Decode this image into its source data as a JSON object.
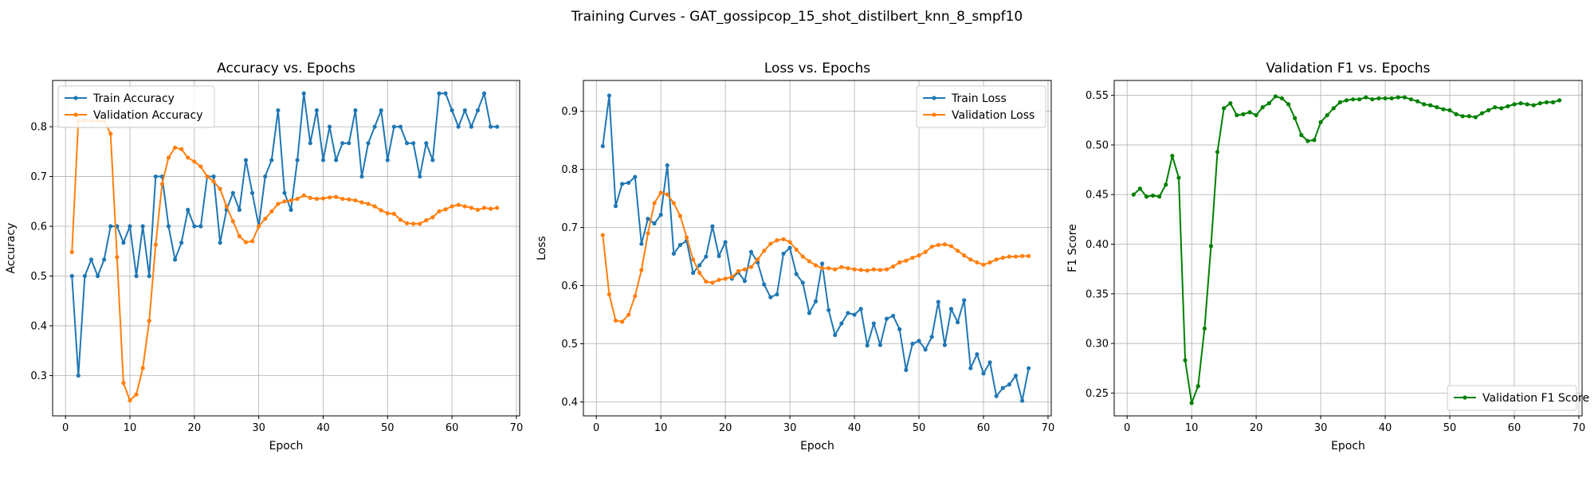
{
  "figure": {
    "suptitle": "Training Curves - GAT_gossipcop_15_shot_distilbert_knn_8_smpf10"
  },
  "chart_data": [
    {
      "type": "line",
      "title": "Accuracy vs. Epochs",
      "xlabel": "Epoch",
      "ylabel": "Accuracy",
      "xlim": [
        -2,
        70.5
      ],
      "ylim": [
        0.219,
        0.893
      ],
      "xticks": [
        0,
        10,
        20,
        30,
        40,
        50,
        60,
        70
      ],
      "yticks": [
        0.3,
        0.4,
        0.5,
        0.6,
        0.7,
        0.8
      ],
      "ytick_decimals": 1,
      "grid": true,
      "legend_position": "top-left",
      "x_start": 1,
      "series": [
        {
          "name": "Train Accuracy",
          "color": "#1f77b4",
          "values": [
            0.5,
            0.3,
            0.5,
            0.533,
            0.5,
            0.533,
            0.6,
            0.6,
            0.567,
            0.6,
            0.5,
            0.6,
            0.5,
            0.7,
            0.7,
            0.6,
            0.533,
            0.567,
            0.633,
            0.6,
            0.6,
            0.7,
            0.7,
            0.567,
            0.633,
            0.667,
            0.633,
            0.733,
            0.667,
            0.6,
            0.7,
            0.733,
            0.833,
            0.667,
            0.633,
            0.733,
            0.867,
            0.767,
            0.833,
            0.733,
            0.8,
            0.733,
            0.767,
            0.767,
            0.833,
            0.7,
            0.767,
            0.8,
            0.833,
            0.733,
            0.8,
            0.8,
            0.767,
            0.767,
            0.7,
            0.767,
            0.733,
            0.867,
            0.867,
            0.833,
            0.8,
            0.833,
            0.8,
            0.833,
            0.867,
            0.8,
            0.8
          ]
        },
        {
          "name": "Validation Accuracy",
          "color": "#ff7f0e",
          "values": [
            0.548,
            0.812,
            0.812,
            0.812,
            0.812,
            0.812,
            0.786,
            0.538,
            0.285,
            0.25,
            0.262,
            0.315,
            0.41,
            0.563,
            0.685,
            0.738,
            0.758,
            0.755,
            0.738,
            0.73,
            0.72,
            0.7,
            0.69,
            0.675,
            0.64,
            0.61,
            0.58,
            0.568,
            0.57,
            0.6,
            0.615,
            0.63,
            0.645,
            0.65,
            0.652,
            0.655,
            0.662,
            0.657,
            0.655,
            0.656,
            0.658,
            0.659,
            0.655,
            0.654,
            0.652,
            0.648,
            0.645,
            0.64,
            0.632,
            0.626,
            0.625,
            0.613,
            0.606,
            0.605,
            0.605,
            0.612,
            0.618,
            0.63,
            0.634,
            0.64,
            0.643,
            0.64,
            0.637,
            0.633,
            0.637,
            0.635,
            0.637
          ]
        }
      ]
    },
    {
      "type": "line",
      "title": "Loss vs. Epochs",
      "xlabel": "Epoch",
      "ylabel": "Loss",
      "xlim": [
        -2,
        70.5
      ],
      "ylim": [
        0.376,
        0.953
      ],
      "xticks": [
        0,
        10,
        20,
        30,
        40,
        50,
        60,
        70
      ],
      "yticks": [
        0.4,
        0.5,
        0.6,
        0.7,
        0.8,
        0.9
      ],
      "ytick_decimals": 1,
      "grid": true,
      "legend_position": "top-right",
      "x_start": 1,
      "series": [
        {
          "name": "Train Loss",
          "color": "#1f77b4",
          "values": [
            0.84,
            0.927,
            0.737,
            0.775,
            0.777,
            0.787,
            0.672,
            0.715,
            0.707,
            0.722,
            0.807,
            0.655,
            0.67,
            0.677,
            0.622,
            0.635,
            0.65,
            0.702,
            0.651,
            0.675,
            0.612,
            0.623,
            0.608,
            0.658,
            0.64,
            0.602,
            0.58,
            0.585,
            0.655,
            0.665,
            0.62,
            0.605,
            0.553,
            0.573,
            0.638,
            0.558,
            0.515,
            0.535,
            0.553,
            0.55,
            0.56,
            0.497,
            0.535,
            0.498,
            0.543,
            0.548,
            0.525,
            0.455,
            0.5,
            0.505,
            0.49,
            0.512,
            0.572,
            0.498,
            0.56,
            0.537,
            0.575,
            0.458,
            0.482,
            0.449,
            0.468,
            0.41,
            0.424,
            0.43,
            0.445,
            0.402,
            0.458
          ]
        },
        {
          "name": "Validation Loss",
          "color": "#ff7f0e",
          "values": [
            0.687,
            0.585,
            0.54,
            0.538,
            0.55,
            0.582,
            0.627,
            0.69,
            0.742,
            0.76,
            0.757,
            0.742,
            0.72,
            0.683,
            0.645,
            0.622,
            0.607,
            0.605,
            0.61,
            0.612,
            0.615,
            0.625,
            0.628,
            0.632,
            0.645,
            0.66,
            0.672,
            0.678,
            0.68,
            0.675,
            0.662,
            0.65,
            0.642,
            0.635,
            0.63,
            0.63,
            0.628,
            0.632,
            0.63,
            0.628,
            0.627,
            0.626,
            0.628,
            0.627,
            0.628,
            0.633,
            0.64,
            0.643,
            0.648,
            0.652,
            0.658,
            0.667,
            0.67,
            0.671,
            0.668,
            0.66,
            0.652,
            0.645,
            0.64,
            0.636,
            0.64,
            0.645,
            0.648,
            0.65,
            0.65,
            0.651,
            0.651
          ]
        }
      ]
    },
    {
      "type": "line",
      "title": "Validation F1 vs. Epochs",
      "xlabel": "Epoch",
      "ylabel": "F1 Score",
      "xlim": [
        -2,
        70.5
      ],
      "ylim": [
        0.227,
        0.565
      ],
      "xticks": [
        0,
        10,
        20,
        30,
        40,
        50,
        60,
        70
      ],
      "yticks": [
        0.25,
        0.3,
        0.35,
        0.4,
        0.45,
        0.5,
        0.55
      ],
      "ytick_decimals": 2,
      "grid": true,
      "legend_position": "bottom-right",
      "x_start": 1,
      "series": [
        {
          "name": "Validation F1 Score",
          "color": "#008000",
          "values": [
            0.45,
            0.456,
            0.448,
            0.449,
            0.448,
            0.46,
            0.489,
            0.467,
            0.283,
            0.24,
            0.257,
            0.315,
            0.398,
            0.493,
            0.537,
            0.542,
            0.53,
            0.531,
            0.533,
            0.53,
            0.538,
            0.542,
            0.549,
            0.547,
            0.541,
            0.527,
            0.51,
            0.504,
            0.505,
            0.523,
            0.53,
            0.537,
            0.543,
            0.545,
            0.546,
            0.546,
            0.548,
            0.546,
            0.547,
            0.547,
            0.547,
            0.548,
            0.548,
            0.546,
            0.544,
            0.541,
            0.54,
            0.538,
            0.536,
            0.535,
            0.531,
            0.529,
            0.529,
            0.528,
            0.532,
            0.535,
            0.538,
            0.537,
            0.539,
            0.541,
            0.542,
            0.541,
            0.54,
            0.542,
            0.543,
            0.543,
            0.545
          ]
        }
      ]
    }
  ]
}
